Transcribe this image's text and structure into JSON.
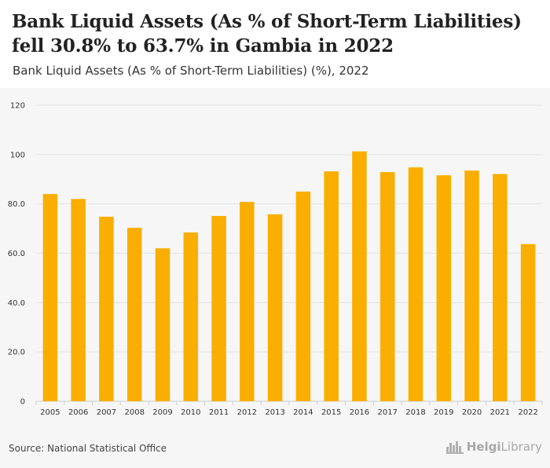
{
  "title_line1": "Bank Liquid Assets (As % of Short-Term Liabilities)",
  "title_line2": "fell 30.8% to 63.7% in Gambia in 2022",
  "subtitle": "Bank Liquid Assets (As % of Short-Term Liabilities) (%), 2022",
  "source": "Source: National Statistical Office",
  "logo": {
    "bold": "Helgi",
    "light": "Library",
    "icon": "city-skyline-icon"
  },
  "colors": {
    "bar": "#f9ae00",
    "grid": "#e2e2e2",
    "axis_text": "#333333"
  },
  "chart_data": {
    "type": "bar",
    "title": "Bank Liquid Assets (As % of Short-Term Liabilities) fell 30.8% to 63.7% in Gambia in 2022",
    "xlabel": "",
    "ylabel": "",
    "ylim": [
      0,
      120
    ],
    "yticks": [
      0,
      20,
      40,
      60,
      80,
      100,
      120
    ],
    "ytick_labels": [
      "0",
      "20.0",
      "40.0",
      "60.0",
      "80.0",
      "100",
      "120"
    ],
    "grid": true,
    "categories": [
      "2005",
      "2006",
      "2007",
      "2008",
      "2009",
      "2010",
      "2011",
      "2012",
      "2013",
      "2014",
      "2015",
      "2016",
      "2017",
      "2018",
      "2019",
      "2020",
      "2021",
      "2022"
    ],
    "values": [
      84.0,
      82.0,
      74.8,
      70.3,
      62.0,
      68.4,
      75.1,
      80.8,
      75.8,
      85.0,
      93.2,
      101.3,
      92.9,
      94.8,
      91.6,
      93.5,
      92.1,
      63.7
    ]
  }
}
